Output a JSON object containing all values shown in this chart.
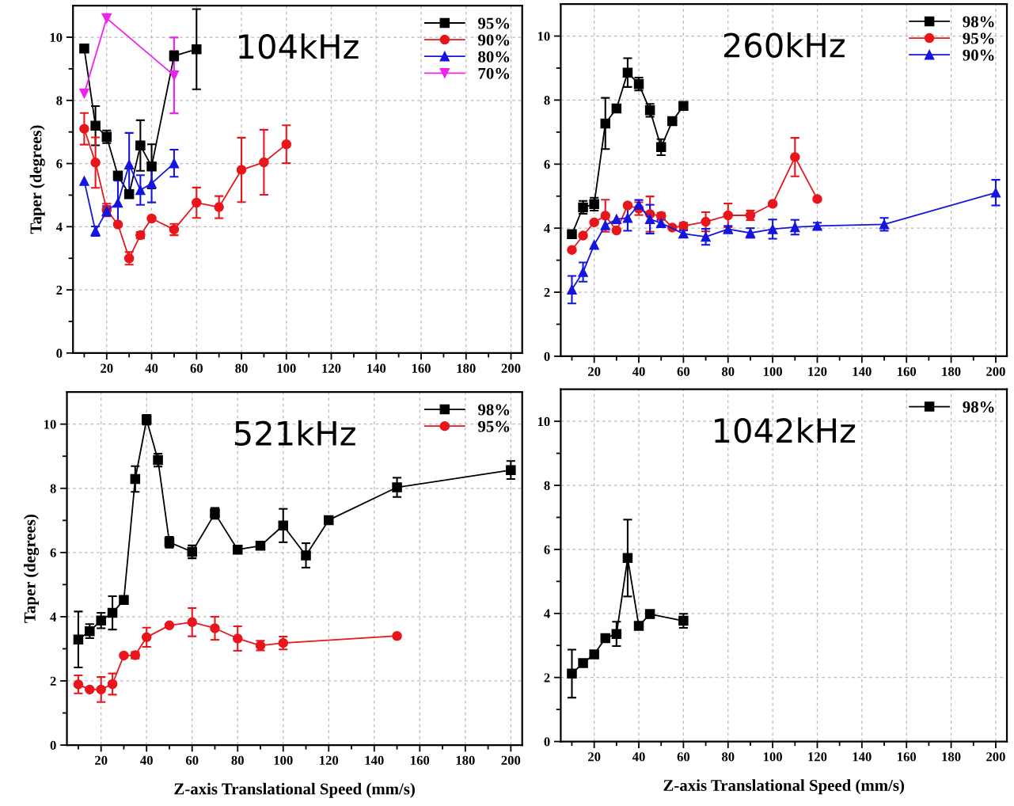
{
  "chart_data": [
    {
      "type": "line",
      "title": "104kHz",
      "ylabel": "Taper (degrees)",
      "xlim": [
        5,
        205
      ],
      "ylim": [
        0,
        11
      ],
      "grid": true,
      "legend": "top right",
      "line_style": "solid",
      "xticks": [
        {
          "value": 10,
          "label": null
        },
        20,
        {
          "value": 30,
          "label": null
        },
        40,
        {
          "value": 50,
          "label": null
        },
        60,
        {
          "value": 70,
          "label": null
        },
        80,
        {
          "value": 90,
          "label": null
        },
        100,
        {
          "value": 110,
          "label": null
        },
        120,
        {
          "value": 130,
          "label": null
        },
        140,
        {
          "value": 150,
          "label": null
        },
        160,
        {
          "value": 170,
          "label": null
        },
        180,
        {
          "value": 190,
          "label": null
        },
        200
      ],
      "yticks": [
        0,
        {
          "value": 1,
          "label": null
        },
        2,
        {
          "value": 3,
          "label": null
        },
        4,
        {
          "value": 5,
          "label": null
        },
        6,
        {
          "value": 7,
          "label": null
        },
        8,
        {
          "value": 9,
          "label": null
        },
        10
      ],
      "series": [
        {
          "name": "95%",
          "color": "#000000",
          "marker": "square",
          "x": [
            10,
            15,
            20,
            25,
            30,
            35,
            40,
            50,
            60
          ],
          "values": [
            9.64,
            7.2,
            6.85,
            5.62,
            5.03,
            6.57,
            5.91,
            9.41,
            9.62
          ],
          "errors": [
            null,
            0.62,
            0.2,
            null,
            null,
            0.8,
            0.7,
            0.15,
            1.27
          ]
        },
        {
          "name": "90%",
          "color": "#e8161b",
          "marker": "circle",
          "x": [
            10,
            15,
            20,
            25,
            30,
            35,
            40,
            50,
            60,
            70,
            80,
            90,
            100
          ],
          "values": [
            7.1,
            6.03,
            4.53,
            4.07,
            3.0,
            3.73,
            4.26,
            3.91,
            4.76,
            4.62,
            5.8,
            6.04,
            6.61
          ],
          "errors": [
            0.5,
            0.8,
            0.2,
            null,
            0.2,
            0.1,
            null,
            0.18,
            0.48,
            0.35,
            1.02,
            1.03,
            0.6
          ]
        },
        {
          "name": "80%",
          "color": "#1515e0",
          "marker": "triangle",
          "x": [
            10,
            15,
            20,
            25,
            30,
            35,
            40,
            50
          ],
          "values": [
            5.45,
            3.86,
            4.5,
            4.76,
            5.97,
            5.16,
            5.37,
            6.01
          ],
          "errors": [
            null,
            0.15,
            0.15,
            0.7,
            1.0,
            0.47,
            0.6,
            0.43
          ]
        },
        {
          "name": "70%",
          "color": "#ee22ee",
          "marker": "triangle_down",
          "x": [
            10,
            20,
            50
          ],
          "values": [
            8.22,
            10.6,
            8.79
          ],
          "errors": [
            null,
            null,
            1.2
          ]
        }
      ]
    },
    {
      "type": "line",
      "title": "260kHz",
      "xlim": [
        5,
        205
      ],
      "ylim": [
        0,
        11
      ],
      "grid": true,
      "legend": "top right",
      "line_style": "solid",
      "xticks": [
        {
          "value": 10,
          "label": null
        },
        20,
        {
          "value": 30,
          "label": null
        },
        40,
        {
          "value": 50,
          "label": null
        },
        60,
        {
          "value": 70,
          "label": null
        },
        80,
        {
          "value": 90,
          "label": null
        },
        100,
        {
          "value": 110,
          "label": null
        },
        120,
        {
          "value": 130,
          "label": null
        },
        140,
        {
          "value": 150,
          "label": null
        },
        160,
        {
          "value": 170,
          "label": null
        },
        180,
        {
          "value": 190,
          "label": null
        },
        200
      ],
      "yticks": [
        0,
        {
          "value": 1,
          "label": null
        },
        2,
        {
          "value": 3,
          "label": null
        },
        4,
        {
          "value": 5,
          "label": null
        },
        6,
        {
          "value": 7,
          "label": null
        },
        8,
        {
          "value": 9,
          "label": null
        },
        10
      ],
      "series": [
        {
          "name": "98%",
          "color": "#000000",
          "marker": "square",
          "x": [
            10,
            15,
            20,
            25,
            30,
            35,
            40,
            45,
            50,
            55,
            60
          ],
          "values": [
            3.81,
            4.65,
            4.75,
            7.27,
            7.74,
            8.86,
            8.5,
            7.68,
            6.53,
            7.34,
            7.82
          ],
          "errors": [
            null,
            0.2,
            0.2,
            0.8,
            null,
            0.45,
            0.2,
            0.2,
            0.25,
            null,
            null
          ]
        },
        {
          "name": "95%",
          "color": "#e8161b",
          "marker": "circle",
          "x": [
            10,
            15,
            20,
            25,
            30,
            35,
            40,
            45,
            50,
            55,
            60,
            70,
            80,
            90,
            100,
            110,
            120
          ],
          "values": [
            3.32,
            3.77,
            4.18,
            4.39,
            3.93,
            4.71,
            4.61,
            4.44,
            4.38,
            4.02,
            4.07,
            4.2,
            4.4,
            4.4,
            4.76,
            6.22,
            4.91
          ],
          "errors": [
            null,
            null,
            null,
            0.5,
            null,
            null,
            0.2,
            0.55,
            0.1,
            null,
            0.1,
            0.3,
            0.37,
            0.15,
            null,
            0.6,
            null
          ]
        },
        {
          "name": "90%",
          "color": "#1515e0",
          "marker": "triangle",
          "x": [
            10,
            15,
            20,
            25,
            30,
            35,
            40,
            45,
            50,
            60,
            70,
            80,
            90,
            100,
            110,
            120,
            150,
            200
          ],
          "values": [
            2.08,
            2.63,
            3.48,
            4.09,
            4.28,
            4.32,
            4.73,
            4.28,
            4.16,
            3.83,
            3.73,
            3.97,
            3.85,
            3.97,
            4.03,
            4.07,
            4.12,
            5.11
          ],
          "errors": [
            0.43,
            0.3,
            null,
            null,
            null,
            0.4,
            0.15,
            0.45,
            0.1,
            0.1,
            0.25,
            0.1,
            0.15,
            0.3,
            0.23,
            0.1,
            0.2,
            0.4
          ]
        }
      ]
    },
    {
      "type": "line",
      "title": "521kHz",
      "xlabel": "Z-axis Translational Speed (mm/s)",
      "ylabel": "Taper (degrees)",
      "xlim": [
        5,
        205
      ],
      "ylim": [
        0,
        11
      ],
      "grid": true,
      "legend": "top right",
      "line_style": "solid",
      "xticks": [
        {
          "value": 10,
          "label": null
        },
        20,
        {
          "value": 30,
          "label": null
        },
        40,
        {
          "value": 50,
          "label": null
        },
        60,
        {
          "value": 70,
          "label": null
        },
        80,
        {
          "value": 90,
          "label": null
        },
        100,
        {
          "value": 110,
          "label": null
        },
        120,
        {
          "value": 130,
          "label": null
        },
        140,
        {
          "value": 150,
          "label": null
        },
        160,
        {
          "value": 170,
          "label": null
        },
        180,
        {
          "value": 190,
          "label": null
        },
        200
      ],
      "yticks": [
        0,
        {
          "value": 1,
          "label": null
        },
        2,
        {
          "value": 3,
          "label": null
        },
        4,
        {
          "value": 5,
          "label": null
        },
        6,
        {
          "value": 7,
          "label": null
        },
        8,
        {
          "value": 9,
          "label": null
        },
        10
      ],
      "series": [
        {
          "name": "98%",
          "color": "#000000",
          "marker": "square",
          "x": [
            10,
            15,
            20,
            25,
            30,
            35,
            40,
            45,
            50,
            60,
            70,
            80,
            90,
            100,
            110,
            120,
            150,
            200
          ],
          "values": [
            3.29,
            3.55,
            3.88,
            4.12,
            4.52,
            8.29,
            10.14,
            8.88,
            6.32,
            6.02,
            7.22,
            6.09,
            6.21,
            6.84,
            5.91,
            7.01,
            8.03,
            8.57
          ],
          "errors": [
            0.87,
            0.22,
            0.24,
            0.52,
            null,
            0.4,
            0.15,
            0.2,
            0.17,
            0.2,
            0.17,
            null,
            null,
            0.52,
            0.38,
            null,
            0.3,
            0.28
          ]
        },
        {
          "name": "95%",
          "color": "#e8161b",
          "marker": "circle",
          "x": [
            10,
            15,
            20,
            25,
            30,
            35,
            40,
            50,
            60,
            70,
            80,
            90,
            100,
            150
          ],
          "values": [
            1.89,
            1.73,
            1.73,
            1.9,
            2.79,
            2.8,
            3.36,
            3.73,
            3.83,
            3.64,
            3.32,
            3.1,
            3.18,
            3.4
          ],
          "errors": [
            0.28,
            null,
            0.39,
            0.33,
            null,
            0.1,
            0.3,
            null,
            0.44,
            0.36,
            0.38,
            0.15,
            0.2,
            null
          ]
        }
      ]
    },
    {
      "type": "line",
      "title": "1042kHz",
      "xlabel": "Z-axis Translational Speed (mm/s)",
      "xlim": [
        5,
        205
      ],
      "ylim": [
        0,
        11
      ],
      "grid": true,
      "legend": "top right",
      "line_style": "solid",
      "xticks": [
        {
          "value": 10,
          "label": null
        },
        20,
        {
          "value": 30,
          "label": null
        },
        40,
        {
          "value": 50,
          "label": null
        },
        60,
        {
          "value": 70,
          "label": null
        },
        80,
        {
          "value": 90,
          "label": null
        },
        100,
        {
          "value": 110,
          "label": null
        },
        120,
        {
          "value": 130,
          "label": null
        },
        140,
        {
          "value": 150,
          "label": null
        },
        160,
        {
          "value": 170,
          "label": null
        },
        180,
        {
          "value": 190,
          "label": null
        },
        200
      ],
      "yticks": [
        0,
        {
          "value": 1,
          "label": null
        },
        2,
        {
          "value": 3,
          "label": null
        },
        4,
        {
          "value": 5,
          "label": null
        },
        6,
        {
          "value": 7,
          "label": null
        },
        8,
        {
          "value": 9,
          "label": null
        },
        10
      ],
      "series": [
        {
          "name": "98%",
          "color": "#000000",
          "marker": "square",
          "x": [
            10,
            15,
            20,
            25,
            30,
            35,
            40,
            45,
            60
          ],
          "values": [
            2.12,
            2.45,
            2.72,
            3.23,
            3.36,
            5.73,
            3.61,
            3.98,
            3.77
          ],
          "errors": [
            0.75,
            null,
            null,
            null,
            0.38,
            1.2,
            null,
            0.1,
            0.22
          ]
        }
      ]
    }
  ]
}
